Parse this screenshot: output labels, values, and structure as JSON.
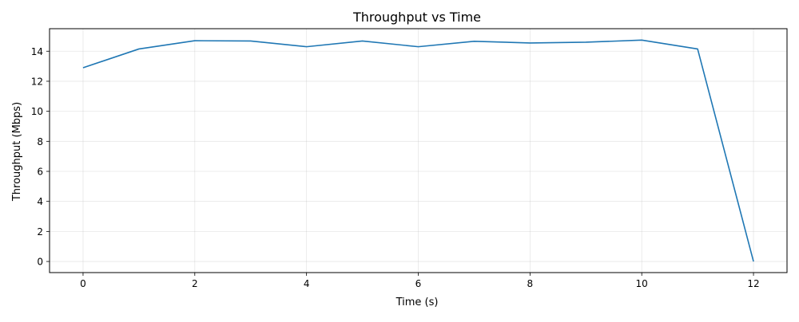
{
  "chart_data": {
    "type": "line",
    "title": "Throughput vs Time",
    "xlabel": "Time (s)",
    "ylabel": "Throughput (Mbps)",
    "xlim": [
      -0.6,
      12.6
    ],
    "ylim": [
      -0.74,
      15.5
    ],
    "x_ticks": [
      0,
      2,
      4,
      6,
      8,
      10,
      12
    ],
    "y_ticks": [
      0,
      2,
      4,
      6,
      8,
      10,
      12,
      14
    ],
    "grid": true,
    "legend": "none",
    "series": [
      {
        "color": "#1f77b4",
        "x": [
          0,
          1,
          2,
          3,
          4,
          5,
          6,
          7,
          8,
          9,
          10,
          11,
          12
        ],
        "y": [
          12.9,
          14.15,
          14.7,
          14.68,
          14.3,
          14.68,
          14.3,
          14.66,
          14.55,
          14.6,
          14.74,
          14.15,
          0
        ]
      }
    ]
  }
}
